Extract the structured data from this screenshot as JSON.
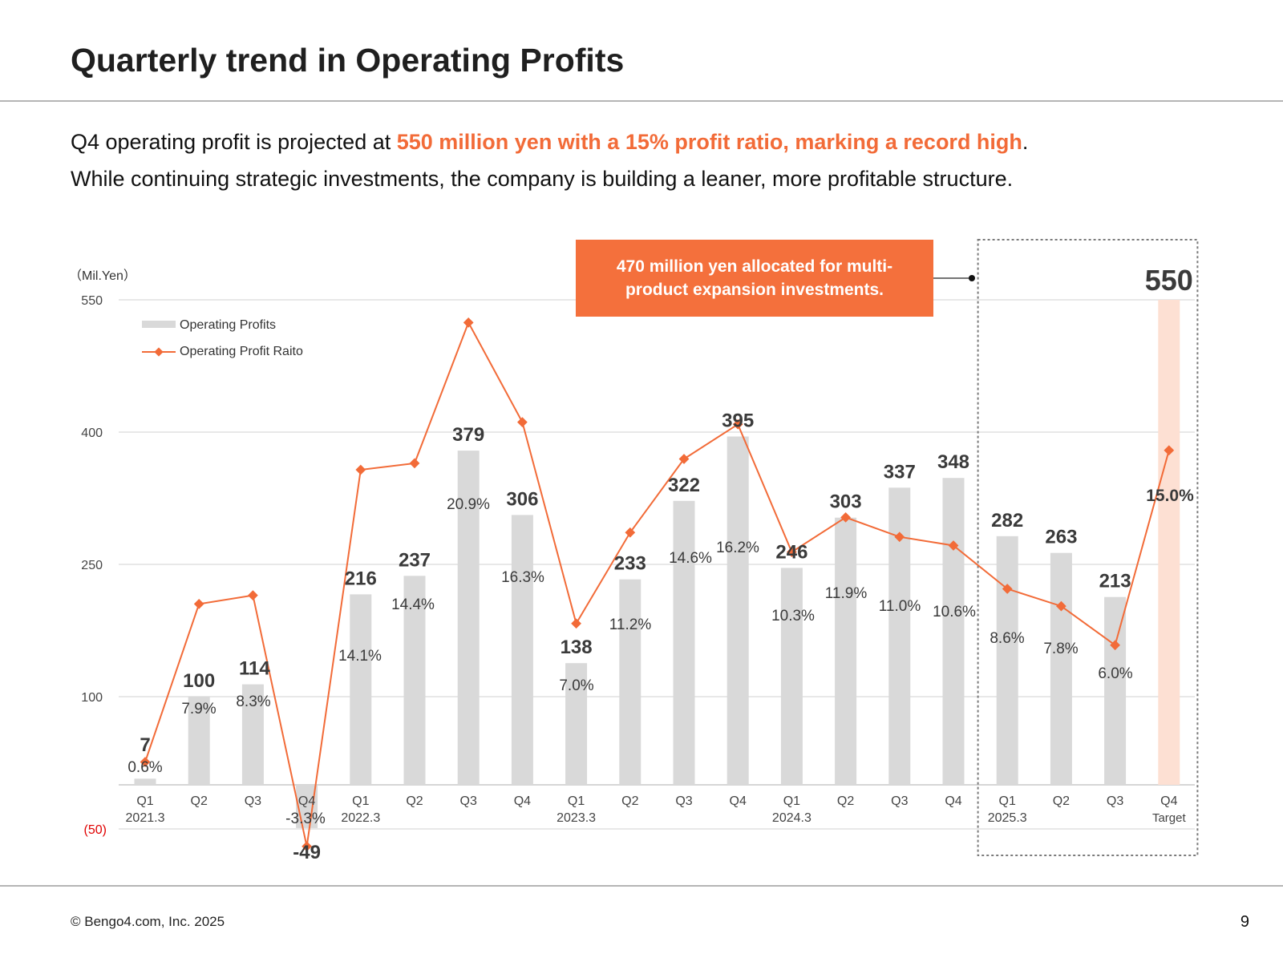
{
  "title": "Quarterly trend in Operating Profits",
  "lead": {
    "prefix": "Q4 operating profit is projected at ",
    "highlight": "550 million yen with a 15% profit ratio, marking a record high",
    "suffix": ".",
    "line2": "While continuing strategic investments, the company is building a leaner, more profitable structure."
  },
  "callout": "470 million yen allocated for multi-product expansion investments.",
  "footer": {
    "copyright": "© Bengo4.com, Inc. 2025",
    "page_number": "9"
  },
  "colors": {
    "accent": "#f26b38",
    "bar": "#d9d9d9",
    "target_bar": "#fde0d3",
    "line": "#f26b38",
    "neg_tick": "#e00000"
  },
  "chart_data": {
    "type": "bar+line",
    "unit_label": "（Mil.Yen）",
    "ylim": [
      -50,
      550
    ],
    "yticks": [
      {
        "value": 550,
        "label": "550"
      },
      {
        "value": 400,
        "label": "400"
      },
      {
        "value": 250,
        "label": "250"
      },
      {
        "value": 100,
        "label": "100"
      },
      {
        "value": -50,
        "label": "(50)"
      }
    ],
    "legend": [
      {
        "name": "Operating Profits",
        "kind": "bar"
      },
      {
        "name": "Operating Profit Raito",
        "kind": "line"
      }
    ],
    "categories": [
      {
        "q": "Q1",
        "fy": "2021.3"
      },
      {
        "q": "Q2",
        "fy": ""
      },
      {
        "q": "Q3",
        "fy": ""
      },
      {
        "q": "Q4",
        "fy": ""
      },
      {
        "q": "Q1",
        "fy": "2022.3"
      },
      {
        "q": "Q2",
        "fy": ""
      },
      {
        "q": "Q3",
        "fy": ""
      },
      {
        "q": "Q4",
        "fy": ""
      },
      {
        "q": "Q1",
        "fy": "2023.3"
      },
      {
        "q": "Q2",
        "fy": ""
      },
      {
        "q": "Q3",
        "fy": ""
      },
      {
        "q": "Q4",
        "fy": ""
      },
      {
        "q": "Q1",
        "fy": "2024.3"
      },
      {
        "q": "Q2",
        "fy": ""
      },
      {
        "q": "Q3",
        "fy": ""
      },
      {
        "q": "Q4",
        "fy": ""
      },
      {
        "q": "Q1",
        "fy": "2025.3"
      },
      {
        "q": "Q2",
        "fy": ""
      },
      {
        "q": "Q3",
        "fy": ""
      },
      {
        "q": "Q4",
        "fy": "Target"
      }
    ],
    "series": [
      {
        "name": "Operating Profits",
        "values": [
          7,
          100,
          114,
          -49,
          216,
          237,
          379,
          306,
          138,
          233,
          322,
          395,
          246,
          303,
          337,
          348,
          282,
          263,
          213,
          550
        ],
        "labels": [
          "7",
          "100",
          "114",
          "-49",
          "216",
          "237",
          "379",
          "306",
          "138",
          "233",
          "322",
          "395",
          "246",
          "303",
          "337",
          "348",
          "282",
          "263",
          "213",
          "550"
        ]
      },
      {
        "name": "Operating Profit Raito",
        "values": [
          0.6,
          7.9,
          8.3,
          -3.3,
          14.1,
          14.4,
          20.9,
          16.3,
          7.0,
          11.2,
          14.6,
          16.2,
          10.3,
          11.9,
          11.0,
          10.6,
          8.6,
          7.8,
          6.0,
          15.0
        ],
        "labels": [
          "0.6%",
          "7.9%",
          "8.3%",
          "-3.3%",
          "14.1%",
          "14.4%",
          "20.9%",
          "16.3%",
          "7.0%",
          "11.2%",
          "14.6%",
          "16.2%",
          "10.3%",
          "11.9%",
          "11.0%",
          "10.6%",
          "8.6%",
          "7.8%",
          "6.0%",
          "15.0%"
        ]
      }
    ],
    "highlight_range": {
      "from_index": 16,
      "to_index": 19,
      "style": "dotted box"
    }
  }
}
